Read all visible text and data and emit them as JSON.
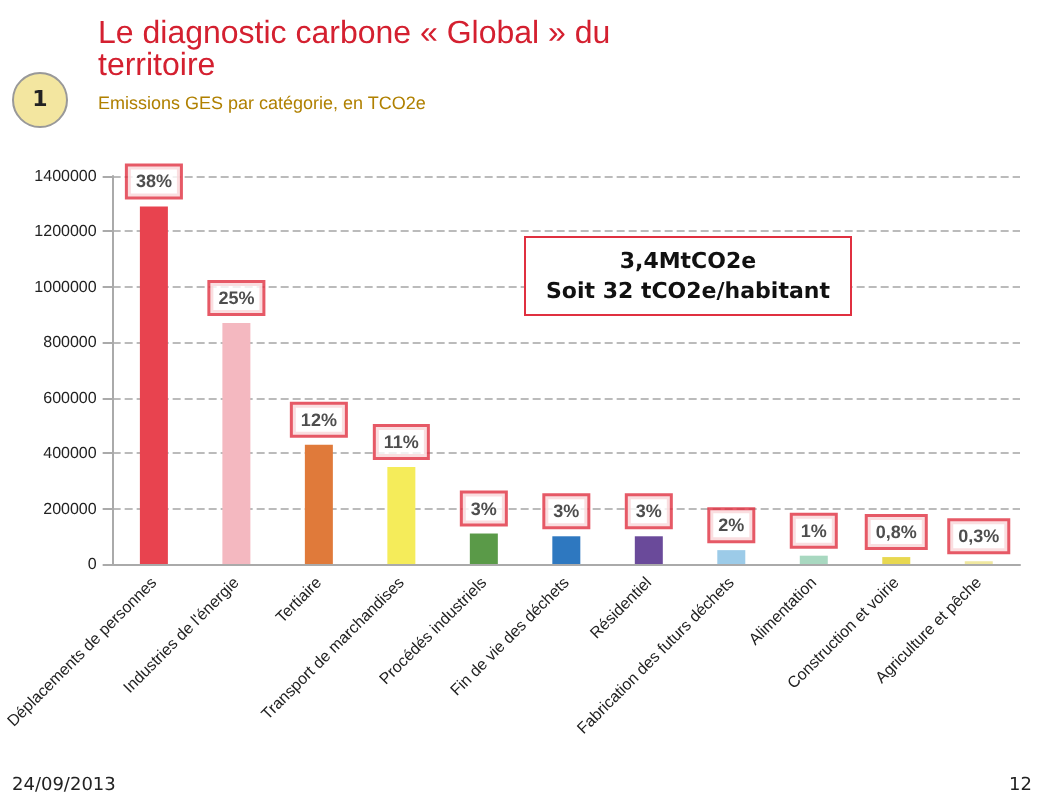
{
  "chart_data": {
    "type": "bar",
    "title": "Le diagnostic carbone « Global » du territoire",
    "subtitle": "Emissions GES par catégorie, en TCO2e",
    "categories": [
      "Déplacements de personnes",
      "Industries de l'énergie",
      "Tertiaire",
      "Transport de marchandises",
      "Procédés industriels",
      "Fin de vie des déchets",
      "Résidentiel",
      "Fabrication des futurs déchets",
      "Alimentation",
      "Construction et voirie",
      "Agriculture et pêche"
    ],
    "values": [
      1290000,
      870000,
      430000,
      350000,
      110000,
      100000,
      100000,
      50000,
      30000,
      25000,
      10000
    ],
    "colors": [
      "#e8434f",
      "#f4b8c0",
      "#e07a3a",
      "#f5ec5a",
      "#5a9a48",
      "#2e78c0",
      "#6a4a9a",
      "#9ccbe8",
      "#a8d8c0",
      "#e8d850",
      "#f0e8a0"
    ],
    "ylim": [
      0,
      1400000
    ],
    "yticks": [
      0,
      200000,
      400000,
      600000,
      800000,
      1000000,
      1200000,
      1400000
    ],
    "grid": "y",
    "annotations": [
      "3,4MtCO2e\nSoit 32 tCO2e/habitant",
      "1",
      "24/09/2013",
      "12",
      {
        "text": "38%",
        "x": "Déplacements de personnes",
        "y": 1290000
      },
      {
        "text": "25%",
        "x": "Industries de l'énergie",
        "y": 870000
      },
      {
        "text": "12%",
        "x": "Tertiaire",
        "y": 430000
      },
      {
        "text": "11%",
        "x": "Transport de marchandises",
        "y": 350000
      },
      {
        "text": "3%",
        "x": "Procédés industriels",
        "y": 110000
      },
      {
        "text": "3%",
        "x": "Fin de vie des déchets",
        "y": 100000
      },
      {
        "text": "3%",
        "x": "Résidentiel",
        "y": 100000
      },
      {
        "text": "2%",
        "x": "Fabrication des futurs déchets",
        "y": 50000
      },
      {
        "text": "1%",
        "x": "Alimentation",
        "y": 30000
      },
      {
        "text": "0,8%",
        "x": "Construction et voirie",
        "y": 25000
      },
      {
        "text": "0,3%",
        "x": "Agriculture et pêche",
        "y": 10000
      }
    ]
  }
}
